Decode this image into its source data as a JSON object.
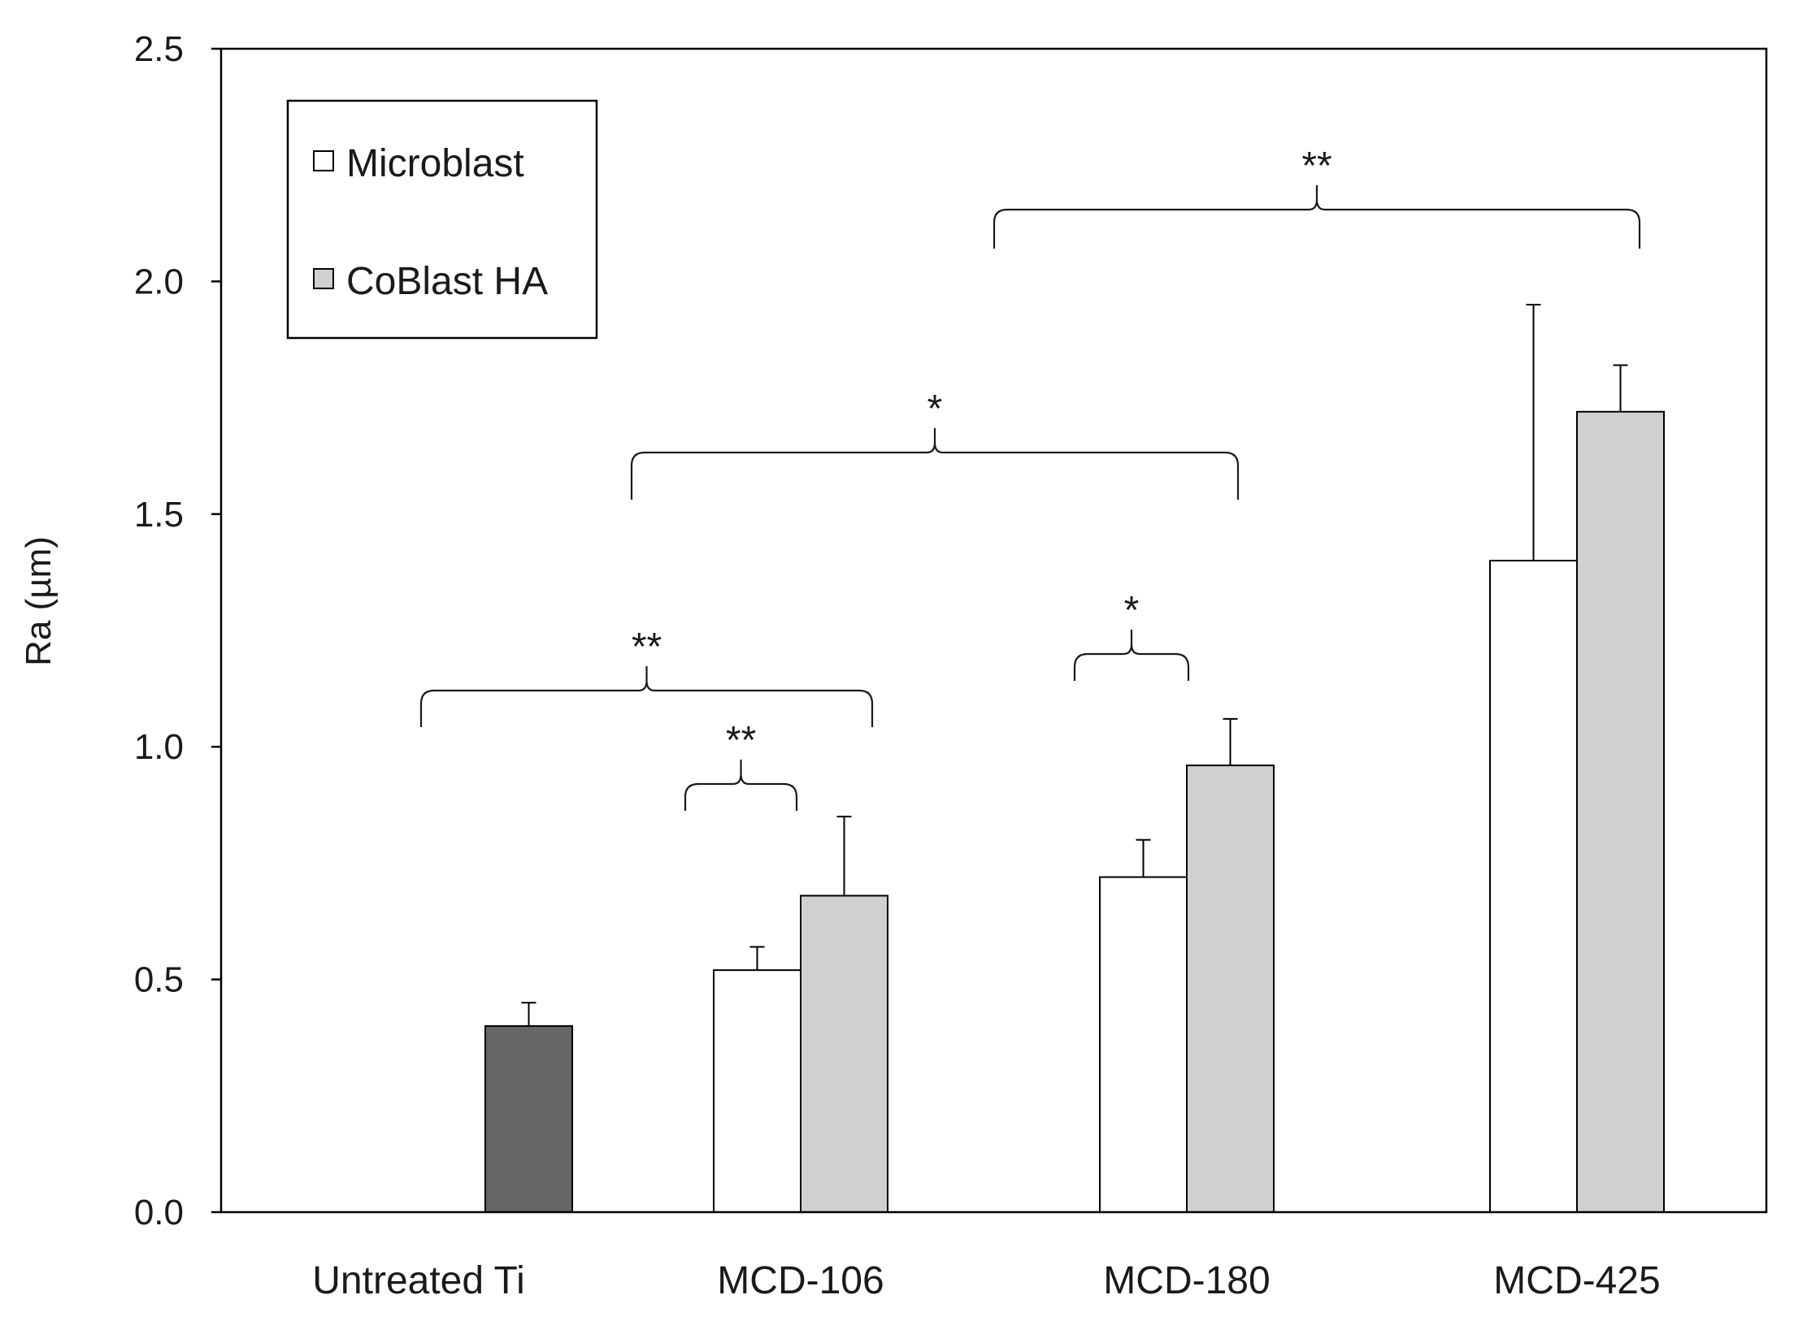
{
  "chart_data": {
    "type": "bar",
    "title": "",
    "xlabel": "",
    "ylabel": "Ra (µm)",
    "ylim": [
      0,
      2.5
    ],
    "yticks": [
      "0.0",
      "0.5",
      "1.0",
      "1.5",
      "2.0",
      "2.5"
    ],
    "categories": [
      "Untreated Ti",
      "MCD-106",
      "MCD-180",
      "MCD-425"
    ],
    "legend": {
      "position": "top-left",
      "entries": [
        {
          "label": "Microblast",
          "color": "#ffffff"
        },
        {
          "label": "CoBlast HA",
          "color": "#d0d0d0"
        }
      ]
    },
    "bars": [
      {
        "category": "Untreated Ti",
        "series": "Untreated",
        "value": 0.4,
        "error": 0.05,
        "color": "#666666"
      },
      {
        "category": "MCD-106",
        "series": "Microblast",
        "value": 0.52,
        "error": 0.05,
        "color": "#ffffff"
      },
      {
        "category": "MCD-106",
        "series": "CoBlast HA",
        "value": 0.68,
        "error": 0.17,
        "color": "#d0d0d0"
      },
      {
        "category": "MCD-180",
        "series": "Microblast",
        "value": 0.72,
        "error": 0.08,
        "color": "#ffffff"
      },
      {
        "category": "MCD-180",
        "series": "CoBlast HA",
        "value": 0.96,
        "error": 0.1,
        "color": "#d0d0d0"
      },
      {
        "category": "MCD-425",
        "series": "Microblast",
        "value": 1.4,
        "error": 0.55,
        "color": "#ffffff"
      },
      {
        "category": "MCD-425",
        "series": "CoBlast HA",
        "value": 1.72,
        "error": 0.1,
        "color": "#d0d0d0"
      }
    ],
    "significance": [
      {
        "from": "MCD-106 CoBlast HA",
        "to": "MCD-106 Microblast",
        "label": "**"
      },
      {
        "from": "Untreated Ti",
        "to": "MCD-106",
        "label": "**"
      },
      {
        "from": "MCD-180 Microblast",
        "to": "MCD-180 CoBlast HA",
        "label": "*"
      },
      {
        "from": "MCD-106",
        "to": "MCD-180",
        "label": "*"
      },
      {
        "from": "MCD-180",
        "to": "MCD-425",
        "label": "**"
      }
    ]
  }
}
